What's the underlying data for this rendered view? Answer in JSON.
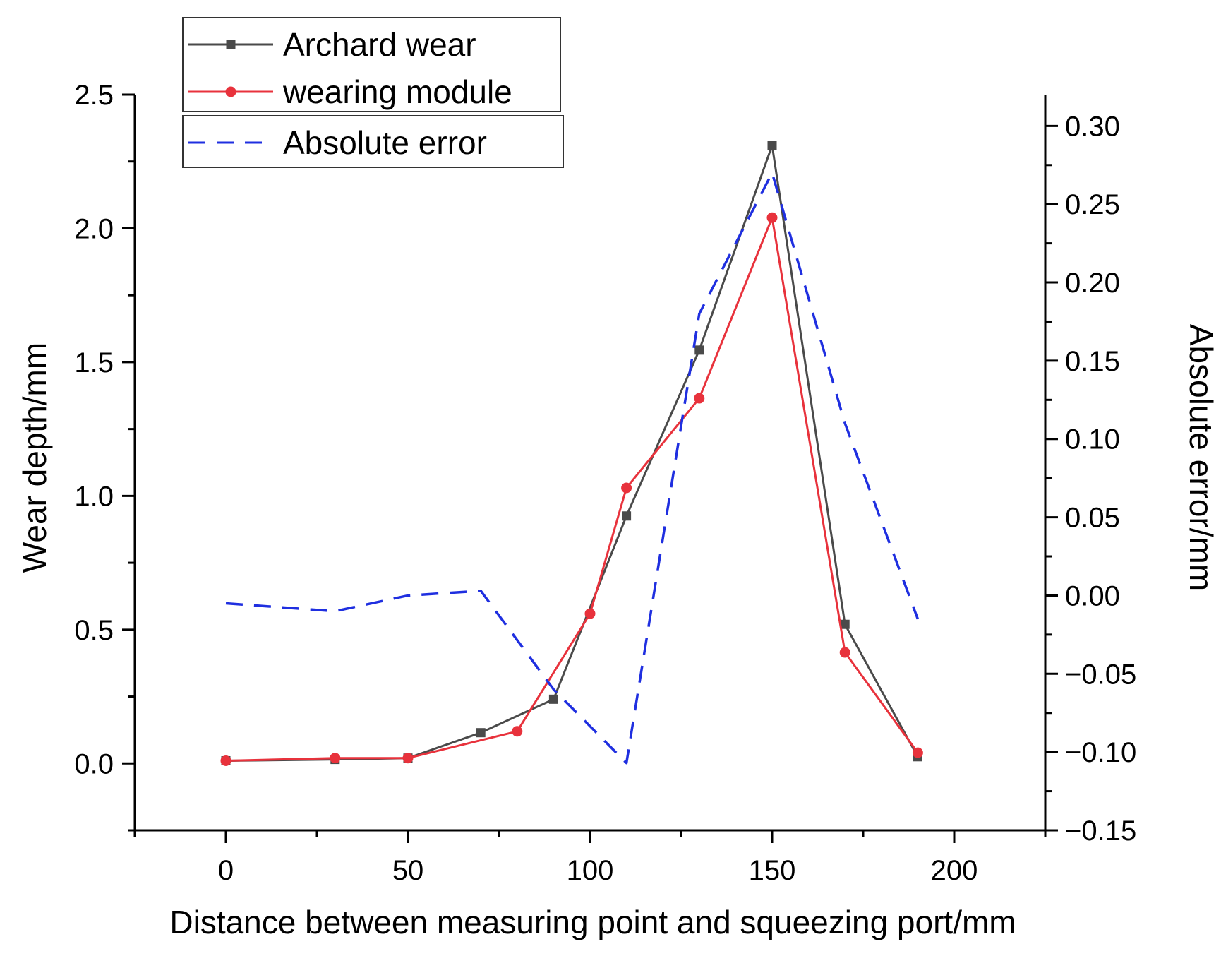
{
  "chart_data": {
    "type": "line",
    "title": "",
    "xlabel": "Distance between measuring point and squeezing port/mm",
    "ylabel": "Wear depth/mm",
    "y2label": "Absolute error/mm",
    "xlim": [
      -25,
      225
    ],
    "ylim": [
      -0.25,
      2.5
    ],
    "y2lim": [
      -0.15,
      0.32
    ],
    "x_ticks": [
      "0",
      "50",
      "100",
      "150",
      "200"
    ],
    "y_ticks": [
      "0.0",
      "0.5",
      "1.0",
      "1.5",
      "2.0",
      "2.5"
    ],
    "y2_ticks": [
      "-0.15",
      "-0.10",
      "-0.05",
      "0.00",
      "0.05",
      "0.10",
      "0.15",
      "0.20",
      "0.25",
      "0.30"
    ],
    "legend_position": "top-left",
    "grid": false,
    "series": [
      {
        "name": "Archard wear",
        "axis": "left",
        "color": "#4a4a4a",
        "marker": "square",
        "x": [
          0,
          30,
          50,
          70,
          90,
          110,
          130,
          150,
          170,
          190
        ],
        "y": [
          0.01,
          0.015,
          0.02,
          0.115,
          0.24,
          0.925,
          1.545,
          2.31,
          0.52,
          0.025
        ]
      },
      {
        "name": "wearing module",
        "axis": "left",
        "color": "#e8323c",
        "marker": "circle",
        "x": [
          0,
          30,
          50,
          80,
          100,
          110,
          130,
          150,
          170,
          190
        ],
        "y": [
          0.01,
          0.02,
          0.02,
          0.12,
          0.56,
          1.03,
          1.365,
          2.04,
          0.415,
          0.04
        ]
      },
      {
        "name": "Absolute error",
        "axis": "right",
        "color": "#1f2fe0",
        "marker": "none",
        "dashed": true,
        "x": [
          0,
          30,
          50,
          70,
          90,
          110,
          130,
          150,
          170,
          190
        ],
        "y": [
          -0.005,
          -0.01,
          0.0,
          0.003,
          -0.06,
          -0.107,
          0.18,
          0.27,
          0.11,
          -0.015
        ]
      }
    ]
  }
}
